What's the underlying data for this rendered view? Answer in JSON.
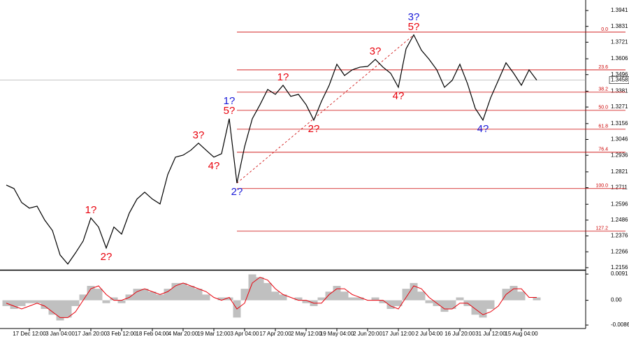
{
  "chart_data": [
    {
      "type": "line",
      "color": "#000000",
      "categories": [
        null,
        null,
        null,
        "17 Dec 12:00",
        null,
        null,
        null,
        "3 Jan 04:00",
        null,
        null,
        null,
        "17 Jan 20:00",
        null,
        null,
        null,
        "3 Feb 12:00",
        null,
        null,
        null,
        "18 Feb 04:00",
        null,
        null,
        null,
        "4 Mar 20:00",
        null,
        null,
        null,
        "19 Mar 12:00",
        null,
        null,
        null,
        "3 Apr 04:00",
        null,
        null,
        null,
        "17 Apr 20:00",
        null,
        null,
        null,
        "2 May 12:00",
        null,
        null,
        null,
        "19 May 04:00",
        null,
        null,
        null,
        "2 Jun 20:00",
        null,
        null,
        null,
        "17 Jun 12:00",
        null,
        null,
        null,
        "2 Jul 04:00",
        null,
        null,
        null,
        "16 Jul 20:00",
        null,
        null,
        null,
        "31 Jul 12:00",
        null,
        null,
        null,
        "15 Aug 04:00",
        null,
        null
      ],
      "values": [
        1.2729,
        1.2705,
        1.2608,
        1.2569,
        1.2583,
        1.2486,
        1.2414,
        1.2244,
        1.2181,
        1.2258,
        1.2341,
        1.2501,
        1.2438,
        1.2292,
        1.2438,
        1.2389,
        1.2535,
        1.2632,
        1.268,
        1.2632,
        1.2598,
        1.2802,
        1.2923,
        1.2937,
        1.2971,
        1.302,
        1.2971,
        1.2923,
        1.2947,
        1.319,
        1.2743,
        1.2996,
        1.319,
        1.3287,
        1.3393,
        1.3359,
        1.3422,
        1.3345,
        1.3359,
        1.3287,
        1.318,
        1.3311,
        1.3422,
        1.3568,
        1.349,
        1.3529,
        1.3548,
        1.3553,
        1.3602,
        1.3548,
        1.3505,
        1.3408,
        1.3675,
        1.3772,
        1.3665,
        1.3602,
        1.3529,
        1.3408,
        1.3456,
        1.3568,
        1.3432,
        1.3262,
        1.318,
        1.3335,
        1.3456,
        1.3578,
        1.3505,
        1.3422,
        1.3529,
        1.3458
      ],
      "ylim": [
        1.2141,
        1.4014
      ],
      "yticks": [
        1.3941,
        1.3831,
        1.3721,
        1.3606,
        1.3496,
        1.3381,
        1.3271,
        1.3156,
        1.3046,
        1.2936,
        1.2821,
        1.2711,
        1.2596,
        1.2486,
        1.2376,
        1.2266,
        1.2156
      ],
      "fib_color": "#cc0000",
      "fib_levels": [
        {
          "value": 1.3791,
          "label": "0.0"
        },
        {
          "value": 1.3529,
          "label": "23.6"
        },
        {
          "value": 1.3374,
          "label": "38.2"
        },
        {
          "value": 1.3248,
          "label": "50.0"
        },
        {
          "value": 1.3117,
          "label": "61.8"
        },
        {
          "value": 1.2957,
          "label": "76.4"
        },
        {
          "value": 1.2705,
          "label": "100.0"
        },
        {
          "value": 1.2409,
          "label": "127.2"
        }
      ],
      "wave_labels": [
        null,
        null,
        null,
        null,
        null,
        null,
        null,
        null,
        null,
        null,
        null,
        [
          {
            "text": "1?",
            "color": "#e8000b"
          }
        ],
        null,
        [
          {
            "text": "2?",
            "color": "#e8000b"
          }
        ],
        null,
        null,
        null,
        null,
        null,
        null,
        null,
        null,
        null,
        null,
        null,
        [
          {
            "text": "3?",
            "color": "#e8000b"
          }
        ],
        null,
        [
          {
            "text": "4?",
            "color": "#e8000b"
          }
        ],
        null,
        [
          {
            "text": "1?",
            "color": "#1a1ad8"
          },
          {
            "text": "5?",
            "color": "#e8000b"
          }
        ],
        [
          {
            "text": "2?",
            "color": "#1a1ad8"
          }
        ],
        null,
        null,
        null,
        null,
        null,
        [
          {
            "text": "1?",
            "color": "#e8000b"
          }
        ],
        null,
        null,
        null,
        [
          {
            "text": "2?",
            "color": "#e8000b"
          }
        ],
        null,
        null,
        null,
        null,
        null,
        null,
        null,
        [
          {
            "text": "3?",
            "color": "#e8000b"
          }
        ],
        null,
        null,
        [
          {
            "text": "4?",
            "color": "#e8000b"
          }
        ],
        null,
        [
          {
            "text": "3?",
            "color": "#1a1ad8"
          },
          {
            "text": "5?",
            "color": "#e8000b"
          }
        ],
        null,
        null,
        null,
        null,
        null,
        null,
        null,
        null,
        [
          {
            "text": "4?",
            "color": "#1a1ad8"
          }
        ],
        null,
        null,
        null,
        null,
        null,
        null,
        null
      ]
    },
    {
      "type": "histogram",
      "color": "#c0c0c0",
      "signal_color": "#e8000b",
      "values": [
        -0.002,
        -0.003,
        -0.002,
        -0.001,
        -0.001,
        -0.003,
        -0.005,
        -0.007,
        -0.006,
        -0.002,
        0.002,
        0.005,
        0.004,
        -0.001,
        0.001,
        -0.001,
        0.002,
        0.004,
        0.004,
        0.003,
        0.002,
        0.004,
        0.006,
        0.006,
        0.005,
        0.004,
        0.002,
        0,
        0.001,
        0.001,
        -0.006,
        0.004,
        0.009,
        0.008,
        0.006,
        0.003,
        0.002,
        0,
        0.001,
        -0.001,
        -0.002,
        0.001,
        0.003,
        0.005,
        0.003,
        0.001,
        0.001,
        0,
        0.001,
        -0.001,
        -0.003,
        -0.002,
        0.004,
        0.006,
        0.003,
        -0.001,
        -0.002,
        -0.004,
        -0.003,
        0.001,
        -0.002,
        -0.005,
        -0.006,
        -0.003,
        0,
        0.004,
        0.005,
        0.003,
        0,
        0.001
      ],
      "signal": [
        -0.001,
        -0.002,
        -0.003,
        -0.002,
        -0.001,
        -0.002,
        -0.004,
        -0.006,
        -0.006,
        -0.004,
        0,
        0.004,
        0.005,
        0.002,
        0,
        0,
        0.001,
        0.003,
        0.004,
        0.003,
        0.002,
        0.003,
        0.005,
        0.006,
        0.005,
        0.004,
        0.003,
        0.001,
        0,
        0.001,
        -0.003,
        -0.001,
        0.006,
        0.008,
        0.007,
        0.004,
        0.002,
        0.001,
        0,
        0,
        -0.001,
        -0.001,
        0.002,
        0.004,
        0.004,
        0.002,
        0.001,
        0,
        0,
        0,
        -0.002,
        -0.003,
        0.001,
        0.005,
        0.004,
        0.001,
        -0.001,
        -0.003,
        -0.003,
        -0.001,
        -0.001,
        -0.003,
        -0.005,
        -0.004,
        -0.002,
        0.002,
        0.004,
        0.004,
        0.001,
        0.001
      ],
      "ylim": [
        -0.0098,
        0.0101
      ],
      "yticks": [
        0.0091,
        {
          "value": 0,
          "label": "0.00"
        },
        -0.0086
      ]
    }
  ]
}
